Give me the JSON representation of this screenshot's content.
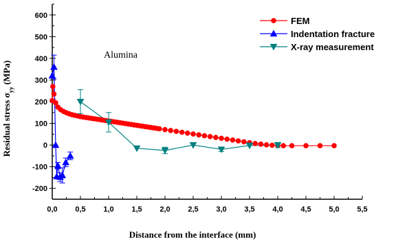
{
  "chart_data": {
    "type": "scatter",
    "xlabel": "Distance from the interface (mm)",
    "ylabel_main": "Residual stress σ",
    "ylabel_sub": "yy",
    "ylabel_unit": "(MPa)",
    "annotation": "Alumina",
    "xlim": [
      0,
      5.5
    ],
    "ylim": [
      -250,
      650
    ],
    "x_ticks": [
      0.0,
      0.5,
      1.0,
      1.5,
      2.0,
      2.5,
      3.0,
      3.5,
      4.0,
      4.5,
      5.0,
      5.5
    ],
    "x_tick_labels": [
      "0,0",
      "0,5",
      "1,0",
      "1,5",
      "2,0",
      "2,5",
      "3,0",
      "3,5",
      "4,0",
      "4,5",
      "5,0",
      "5,5"
    ],
    "y_ticks": [
      -200,
      -100,
      0,
      100,
      200,
      300,
      400,
      500,
      600
    ],
    "y_tick_labels": [
      "-200",
      "-100",
      "0",
      "100",
      "200",
      "300",
      "400",
      "500",
      "600"
    ],
    "legend_position": "top-right",
    "series": [
      {
        "name": "FEM",
        "color": "#ff0000",
        "marker": "circle",
        "x": [
          0.0,
          0.01,
          0.03,
          0.06,
          0.1,
          0.15,
          0.2,
          0.25,
          0.3,
          0.35,
          0.4,
          0.45,
          0.5,
          0.55,
          0.6,
          0.65,
          0.7,
          0.75,
          0.8,
          0.85,
          0.9,
          0.95,
          1.0,
          1.05,
          1.1,
          1.15,
          1.2,
          1.25,
          1.3,
          1.35,
          1.4,
          1.45,
          1.5,
          1.55,
          1.6,
          1.65,
          1.7,
          1.75,
          1.8,
          1.85,
          1.9,
          2.0,
          2.1,
          2.2,
          2.3,
          2.4,
          2.5,
          2.6,
          2.7,
          2.8,
          2.9,
          3.0,
          3.1,
          3.2,
          3.3,
          3.4,
          3.5,
          3.6,
          3.7,
          3.8,
          3.9,
          4.0,
          4.1,
          4.25,
          4.5,
          4.75,
          5.0
        ],
        "y": [
          205,
          270,
          235,
          195,
          175,
          163,
          155,
          149,
          144,
          140,
          137,
          134,
          131,
          129,
          127,
          125,
          123,
          121,
          119,
          117,
          115,
          113,
          111,
          109,
          107,
          105,
          103,
          101,
          99,
          97,
          95,
          93,
          91,
          89,
          87,
          85,
          83,
          81,
          79,
          77,
          75,
          71,
          67,
          63,
          59,
          55,
          51,
          47,
          43,
          39,
          35,
          31,
          27,
          23,
          19,
          15,
          11,
          7,
          4,
          1,
          -1,
          -2,
          -3,
          -3,
          -3,
          -3,
          -3
        ]
      },
      {
        "name": "Indentation fracture",
        "color": "#0000ff",
        "marker": "triangle-up",
        "x": [
          0.0,
          0.03,
          0.06,
          0.08,
          0.1,
          0.14,
          0.18,
          0.24,
          0.32
        ],
        "y": [
          320,
          360,
          0,
          -145,
          -95,
          -148,
          -140,
          -80,
          -50
        ],
        "yerr": [
          0,
          55,
          0,
          0,
          15,
          20,
          35,
          20,
          18
        ]
      },
      {
        "name": "X-ray measurement",
        "color": "#008080",
        "marker": "triangle-down",
        "x": [
          0.5,
          1.0,
          1.5,
          2.0,
          2.5,
          3.0,
          3.5,
          4.0
        ],
        "y": [
          200,
          105,
          -15,
          -25,
          0,
          -20,
          -2,
          0
        ],
        "yerr": [
          55,
          45,
          0,
          15,
          0,
          10,
          0,
          12
        ]
      }
    ]
  }
}
